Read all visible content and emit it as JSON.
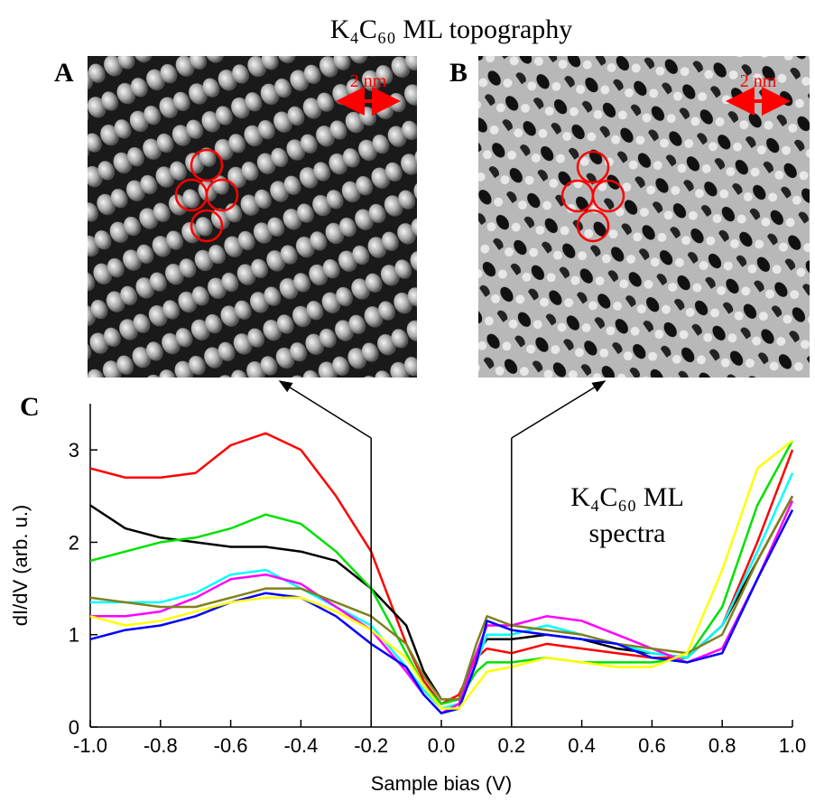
{
  "title": "K₄C₆₀ ML topography",
  "panels": [
    {
      "label": "A",
      "scale_bar": "2 nm"
    },
    {
      "label": "B",
      "scale_bar": "2 nm"
    }
  ],
  "chart_data": {
    "type": "line",
    "panel_label": "C",
    "xlabel": "Sample bias (V)",
    "ylabel": "dI/dV (arb. u.)",
    "annotation": [
      "K₄C₆₀ ML",
      "spectra"
    ],
    "xlim": [
      -1,
      1
    ],
    "ylim": [
      0,
      3.5
    ],
    "xticks": [
      {
        "value": -1,
        "label": "-1.0"
      },
      -0.8,
      -0.6,
      -0.4,
      -0.2,
      {
        "value": 0,
        "label": "0.0"
      },
      0.2,
      0.4,
      0.6,
      0.8,
      {
        "value": 1,
        "label": "1.0"
      }
    ],
    "yticks": [
      0,
      1,
      2,
      3
    ],
    "marker_lines": [
      -0.2,
      0.2
    ],
    "x": [
      -1,
      -0.9,
      -0.8,
      -0.7,
      -0.6,
      -0.5,
      -0.4,
      -0.3,
      -0.2,
      -0.1,
      -0.05,
      0,
      0.05,
      0.1,
      0.13,
      0.2,
      0.3,
      0.4,
      0.5,
      0.6,
      0.7,
      0.8,
      0.9,
      1.0
    ],
    "series": [
      {
        "color": "#ff0000",
        "values": [
          2.8,
          2.7,
          2.7,
          2.75,
          3.05,
          3.18,
          3.0,
          2.5,
          1.9,
          0.9,
          0.5,
          0.25,
          0.35,
          0.75,
          0.85,
          0.8,
          0.9,
          0.85,
          0.8,
          0.75,
          0.75,
          1.1,
          2.0,
          3.0
        ]
      },
      {
        "color": "#000000",
        "values": [
          2.4,
          2.15,
          2.05,
          2.0,
          1.95,
          1.95,
          1.9,
          1.8,
          1.5,
          1.1,
          0.6,
          0.3,
          0.3,
          0.8,
          0.95,
          0.95,
          1.0,
          0.95,
          0.85,
          0.8,
          0.75,
          1.1,
          1.8,
          2.5
        ]
      },
      {
        "color": "#00e000",
        "values": [
          1.8,
          1.9,
          2.0,
          2.05,
          2.15,
          2.3,
          2.2,
          1.9,
          1.5,
          0.8,
          0.45,
          0.25,
          0.3,
          0.6,
          0.7,
          0.7,
          0.75,
          0.7,
          0.7,
          0.7,
          0.75,
          1.3,
          2.4,
          3.1
        ]
      },
      {
        "color": "#00ffff",
        "values": [
          1.35,
          1.35,
          1.35,
          1.45,
          1.65,
          1.7,
          1.5,
          1.3,
          1.1,
          0.65,
          0.4,
          0.2,
          0.25,
          0.7,
          1.0,
          1.0,
          1.1,
          1.0,
          0.9,
          0.8,
          0.75,
          1.1,
          1.9,
          2.75
        ]
      },
      {
        "color": "#ff00ff",
        "values": [
          1.2,
          1.2,
          1.25,
          1.4,
          1.6,
          1.65,
          1.55,
          1.3,
          1.05,
          0.6,
          0.35,
          0.15,
          0.25,
          0.8,
          1.1,
          1.1,
          1.2,
          1.15,
          1.0,
          0.85,
          0.7,
          0.85,
          1.6,
          2.45
        ]
      },
      {
        "color": "#808020",
        "values": [
          1.4,
          1.35,
          1.3,
          1.3,
          1.4,
          1.5,
          1.5,
          1.35,
          1.2,
          0.9,
          0.55,
          0.3,
          0.3,
          0.9,
          1.2,
          1.1,
          1.05,
          1.0,
          0.9,
          0.85,
          0.8,
          1.0,
          1.8,
          2.5
        ]
      },
      {
        "color": "#0000ff",
        "values": [
          0.95,
          1.05,
          1.1,
          1.2,
          1.35,
          1.45,
          1.4,
          1.2,
          0.9,
          0.65,
          0.35,
          0.15,
          0.2,
          0.7,
          1.15,
          1.05,
          1.0,
          0.95,
          0.9,
          0.75,
          0.7,
          0.8,
          1.6,
          2.35
        ]
      },
      {
        "color": "#ffff00",
        "values": [
          1.2,
          1.1,
          1.15,
          1.25,
          1.35,
          1.4,
          1.4,
          1.25,
          1.05,
          0.75,
          0.45,
          0.2,
          0.2,
          0.45,
          0.6,
          0.65,
          0.75,
          0.7,
          0.65,
          0.65,
          0.8,
          1.7,
          2.8,
          3.1
        ]
      }
    ]
  }
}
